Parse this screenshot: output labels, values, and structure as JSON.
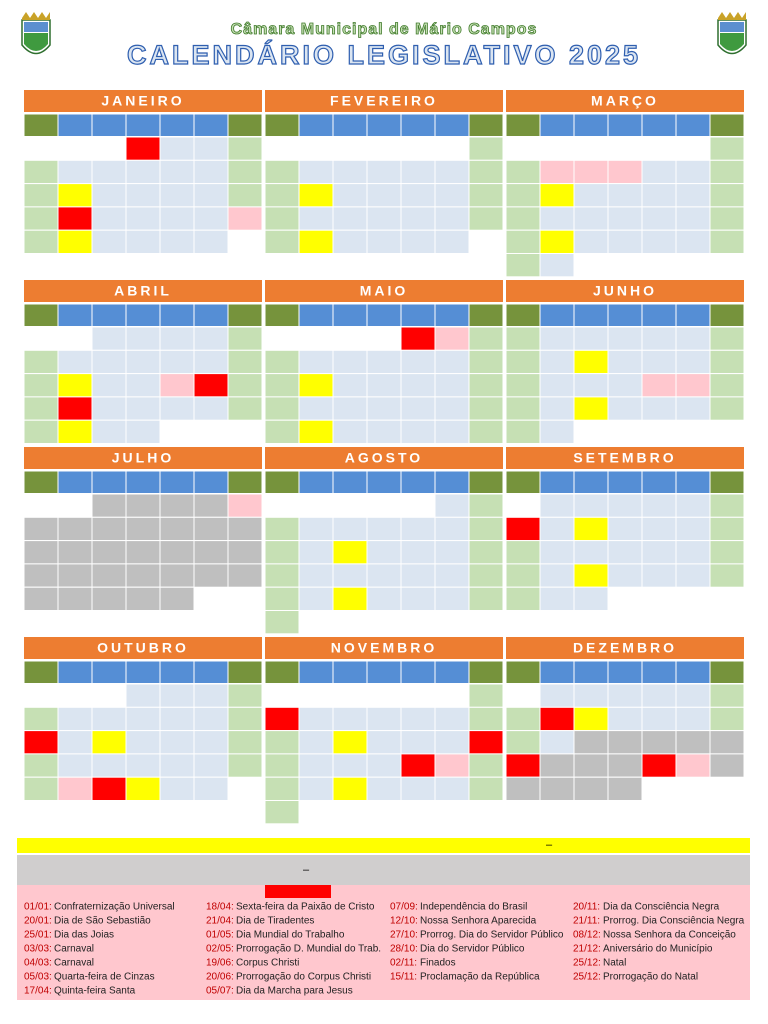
{
  "header": {
    "subtitle": "Câmara Municipal de Mário Campos",
    "title": "CALENDÁRIO LEGISLATIVO 2025"
  },
  "months": [
    "JANEIRO",
    "FEVEREIRO",
    "MARÇO",
    "ABRIL",
    "MAIO",
    "JUNHO",
    "JULHO",
    "AGOSTO",
    "SETEMBRO",
    "OUTUBRO",
    "NOVEMBRO",
    "DEZEMBRO"
  ],
  "legend": {
    "yellow_bar": "–",
    "gray_bar": "–"
  },
  "holidays": [
    [
      {
        "date": "01/01:",
        "name": "Confraternização Universal"
      },
      {
        "date": "20/01:",
        "name": "Dia de São Sebastião"
      },
      {
        "date": "25/01:",
        "name": "Dia das Joias"
      },
      {
        "date": "03/03:",
        "name": "Carnaval"
      },
      {
        "date": "04/03:",
        "name": "Carnaval"
      },
      {
        "date": "05/03:",
        "name": "Quarta-feira de Cinzas"
      },
      {
        "date": "17/04:",
        "name": "Quinta-feira Santa"
      }
    ],
    [
      {
        "date": "18/04:",
        "name": "Sexta-feira da Paixão de Cristo"
      },
      {
        "date": "21/04:",
        "name": "Dia de Tiradentes"
      },
      {
        "date": "01/05:",
        "name": "Dia Mundial do Trabalho"
      },
      {
        "date": "02/05:",
        "name": "Prorrogação D. Mundial do Trab."
      },
      {
        "date": "19/06:",
        "name": "Corpus Christi"
      },
      {
        "date": "20/06:",
        "name": "Prorrogação do Corpus Christi"
      },
      {
        "date": "05/07:",
        "name": "Dia da Marcha para Jesus"
      }
    ],
    [
      {
        "date": "07/09:",
        "name": "Independência do Brasil"
      },
      {
        "date": "12/10:",
        "name": "Nossa Senhora Aparecida"
      },
      {
        "date": "27/10:",
        "name": "Prorrog. Dia do Servidor Público"
      },
      {
        "date": "28/10:",
        "name": "Dia do Servidor Público"
      },
      {
        "date": "02/11:",
        "name": "Finados"
      },
      {
        "date": "15/11:",
        "name": "Proclamação da República"
      }
    ],
    [
      {
        "date": "20/11:",
        "name": "Dia da Consciência Negra"
      },
      {
        "date": "21/11:",
        "name": "Prorrog. Dia Consciência Negra"
      },
      {
        "date": "08/12:",
        "name": "Nossa Senhora da Conceição"
      },
      {
        "date": "21/12:",
        "name": "Aniversário do Município"
      },
      {
        "date": "25/12:",
        "name": "Natal"
      },
      {
        "date": "25/12:",
        "name": "Prorrogação do Natal"
      }
    ]
  ]
}
